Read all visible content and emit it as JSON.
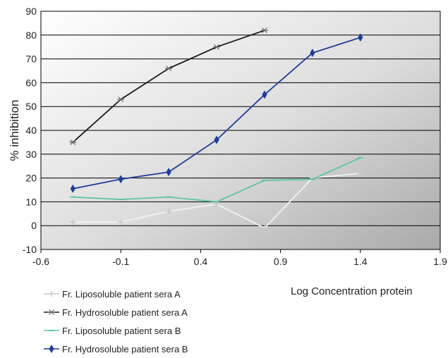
{
  "chart_data": {
    "type": "line",
    "title": "",
    "xlabel": "Log Concentration protein",
    "ylabel": "% inhibition",
    "xlim": [
      -0.6,
      1.9
    ],
    "ylim": [
      -10,
      90
    ],
    "xticks": [
      "-0.6",
      "-0.1",
      "0.4",
      "0.9",
      "1.4",
      "1.9"
    ],
    "yticks": [
      "-10",
      "0",
      "10",
      "20",
      "30",
      "40",
      "50",
      "60",
      "70",
      "80",
      "90"
    ],
    "grid": true,
    "legend_position": "bottom-left",
    "series": [
      {
        "name": "Fr. Liposoluble patient sera A",
        "color": "#f2f2f2",
        "marker": "plus",
        "x": [
          -0.4,
          -0.1,
          0.2,
          0.5,
          0.8,
          1.1,
          1.4
        ],
        "y": [
          1.5,
          1.5,
          6,
          9,
          -1,
          20,
          22
        ]
      },
      {
        "name": "Fr. Hydrosoluble patient sera A",
        "color": "#1a1a1a",
        "marker": "star",
        "x": [
          -0.4,
          -0.1,
          0.2,
          0.5,
          0.8
        ],
        "y": [
          35,
          53,
          66,
          75,
          82
        ]
      },
      {
        "name": "Fr. Liposoluble patient sera B",
        "color": "#5ec4a2",
        "marker": "dash",
        "x": [
          -0.4,
          -0.1,
          0.2,
          0.5,
          0.8,
          1.1,
          1.4
        ],
        "y": [
          12,
          11,
          12,
          10,
          19,
          19.5,
          28.5
        ]
      },
      {
        "name": "Fr. Hydrosoluble patient sera B",
        "color": "#1f3d98",
        "marker": "diamond",
        "x": [
          -0.4,
          -0.1,
          0.2,
          0.5,
          0.8,
          1.1,
          1.4
        ],
        "y": [
          15.5,
          19.5,
          22.5,
          36,
          55,
          72.5,
          79
        ]
      }
    ]
  }
}
